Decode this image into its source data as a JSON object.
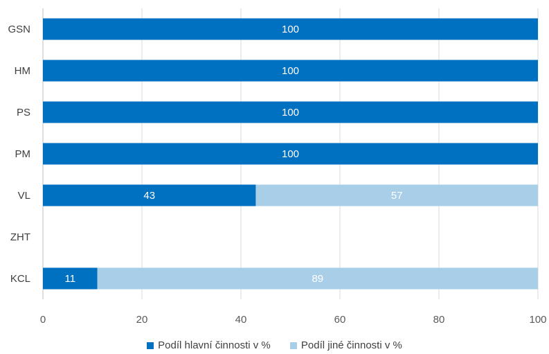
{
  "chart_data": {
    "type": "bar",
    "orientation": "horizontal",
    "stacked": true,
    "categories": [
      "GSN",
      "HM",
      "PS",
      "PM",
      "VL",
      "ZHT",
      "KCL"
    ],
    "series": [
      {
        "name": "Podíl hlavní činnosti v %",
        "color": "#0070C0",
        "values": [
          100,
          100,
          100,
          100,
          43,
          0,
          11
        ]
      },
      {
        "name": "Podíl jiné činnosti v %",
        "color": "#A9CFE8",
        "values": [
          0,
          0,
          0,
          0,
          57,
          0,
          89
        ]
      }
    ],
    "data_labels": [
      [
        "100",
        "100",
        "100",
        "100",
        "43",
        "",
        "11"
      ],
      [
        "",
        "",
        "",
        "",
        "57",
        "",
        "89"
      ]
    ],
    "xlim": [
      0,
      100
    ],
    "xticks": [
      "0",
      "20",
      "40",
      "60",
      "80",
      "100"
    ],
    "grid": true,
    "legend_position": "bottom"
  }
}
